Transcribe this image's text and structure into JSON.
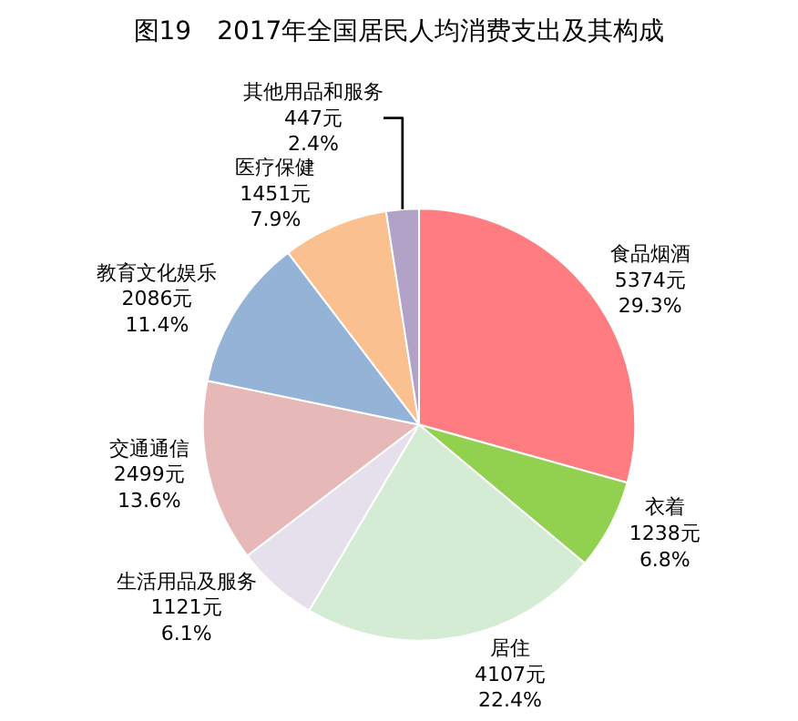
{
  "chart_data": {
    "type": "pie",
    "title": "图19　2017年全国居民人均消费支出及其构成",
    "categories": [
      "食品烟酒",
      "衣着",
      "居住",
      "生活用品及服务",
      "交通通信",
      "教育文化娱乐",
      "医疗保健",
      "其他用品和服务"
    ],
    "values": [
      5374,
      1238,
      4107,
      1121,
      2499,
      2086,
      1451,
      447
    ],
    "value_labels": [
      "5374元\n29.3%",
      "1238元\n6.8%",
      "4107元\n22.4%",
      "1121元\n6.1%",
      "2499元\n13.6%",
      "2086元\n11.4%",
      "1451元\n7.9%",
      "447元\n2.4%"
    ],
    "colors": [
      "#ff7c80",
      "#92d050",
      "#d4ecd4",
      "#e6e0ec",
      "#e6b9b8",
      "#95b3d7",
      "#fac090",
      "#b3a2c7"
    ],
    "legend": false
  }
}
